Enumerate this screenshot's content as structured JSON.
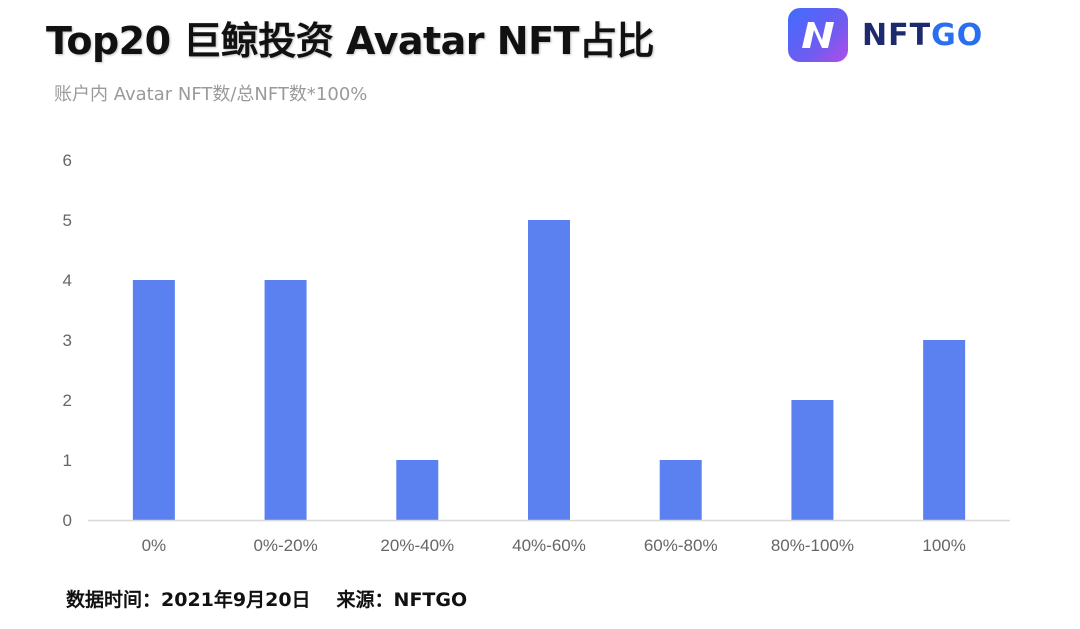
{
  "title": "Top20 巨鲸投资 Avatar NFT占比",
  "subtitle": "账户内 Avatar NFT数/总NFT数*100%",
  "logo": {
    "mark": "N",
    "text_nft": "NFT",
    "text_go": "GO"
  },
  "footer": {
    "date": "数据时间：2021年9月20日",
    "source": "来源：NFTGO"
  },
  "colors": {
    "bar": "#5b80f0",
    "axis_text": "#666666",
    "baseline": "#d9d9d9"
  },
  "chart_data": {
    "type": "bar",
    "title": "Top20 巨鲸投资 Avatar NFT占比",
    "subtitle": "账户内 Avatar NFT数/总NFT数*100%",
    "categories": [
      "0%",
      "0%-20%",
      "20%-40%",
      "40%-60%",
      "60%-80%",
      "80%-100%",
      "100%"
    ],
    "values": [
      4,
      4,
      1,
      5,
      1,
      2,
      3
    ],
    "ylim": [
      0,
      6
    ],
    "yticks": [
      "0",
      "1",
      "2",
      "3",
      "4",
      "5",
      "6"
    ],
    "grid": false,
    "legend": "none"
  }
}
